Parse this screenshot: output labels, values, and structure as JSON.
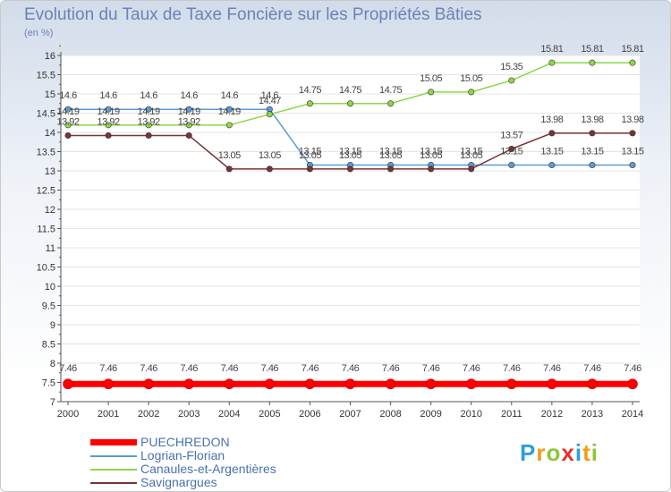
{
  "chart_data": {
    "type": "line",
    "title": "Evolution du Taux de Taxe Foncière sur les Propriétés Bâties",
    "ylabel": "(en %)",
    "xlabel": "",
    "categories": [
      "2000",
      "2001",
      "2002",
      "2003",
      "2004",
      "2005",
      "2006",
      "2007",
      "2008",
      "2009",
      "2010",
      "2011",
      "2012",
      "2013",
      "2014"
    ],
    "ylim": [
      7,
      16
    ],
    "yticks": [
      7,
      7.5,
      8,
      8.5,
      9,
      9.5,
      10,
      10.5,
      11,
      11.5,
      12,
      12.5,
      13,
      13.5,
      14,
      14.5,
      15,
      15.5,
      16
    ],
    "ytick_labels": [
      "7",
      "7.5",
      "8",
      "8.5",
      "9",
      "9.5",
      "10",
      "10.5",
      "11",
      "11.5",
      "12",
      "12.5",
      "13",
      "13.5",
      "14",
      "14.5",
      "15",
      "15.5",
      "16"
    ],
    "series": [
      {
        "name": "PUECHREDON",
        "color": "#ff0000",
        "values": [
          7.46,
          7.46,
          7.46,
          7.46,
          7.46,
          7.46,
          7.46,
          7.46,
          7.46,
          7.46,
          7.46,
          7.46,
          7.46,
          7.46,
          7.46
        ],
        "labels": [
          "7.46",
          "7.46",
          "7.46",
          "7.46",
          "7.46",
          "7.46",
          "7.46",
          "7.46",
          "7.46",
          "7.46",
          "7.46",
          "7.46",
          "7.46",
          "7.46",
          "7.46"
        ]
      },
      {
        "name": "Logrian-Florian",
        "color": "#5b9bd5",
        "values": [
          14.6,
          14.6,
          14.6,
          14.6,
          14.6,
          14.6,
          13.15,
          13.15,
          13.15,
          13.15,
          13.15,
          13.15,
          13.15,
          13.15,
          13.15
        ],
        "labels": [
          "14.6",
          "14.6",
          "14.6",
          "14.6",
          "14.6",
          "14.6",
          "13.15",
          "13.15",
          "13.15",
          "13.15",
          "13.15",
          "13.15",
          "13.15",
          "13.15",
          "13.15"
        ]
      },
      {
        "name": "Canaules-et-Argentières",
        "color": "#8ed64a",
        "values": [
          14.19,
          14.19,
          14.19,
          14.19,
          14.19,
          14.47,
          14.75,
          14.75,
          14.75,
          15.05,
          15.05,
          15.35,
          15.81,
          15.81,
          15.81
        ],
        "labels": [
          "14.19",
          "14.19",
          "14.19",
          "14.19",
          "14.19",
          "14.47",
          "14.75",
          "14.75",
          "14.75",
          "15.05",
          "15.05",
          "15.35",
          "15.81",
          "15.81",
          "15.81"
        ]
      },
      {
        "name": "Savignargues",
        "color": "#7a3434",
        "values": [
          13.92,
          13.92,
          13.92,
          13.92,
          13.05,
          13.05,
          13.05,
          13.05,
          13.05,
          13.05,
          13.05,
          13.57,
          13.98,
          13.98,
          13.98
        ],
        "labels": [
          "13.92",
          "13.92",
          "13.92",
          "13.92",
          "13.05",
          "13.05",
          "13.05",
          "13.05",
          "13.05",
          "13.05",
          "13.05",
          "13.57",
          "13.98",
          "13.98",
          "13.98"
        ]
      }
    ],
    "legend_position": "bottom-left"
  },
  "legend": [
    {
      "label": "PUECHREDON",
      "color": "#ff0000"
    },
    {
      "label": "Logrian-Florian",
      "color": "#5b9bd5"
    },
    {
      "label": "Canaules-et-Argentières",
      "color": "#8ed64a"
    },
    {
      "label": "Savignargues",
      "color": "#7a3434"
    }
  ],
  "logo": {
    "letters": [
      "P",
      "r",
      "o",
      "x",
      "i",
      "t",
      "i"
    ],
    "colors": [
      "#2f9fd8",
      "#f39c12",
      "#8cc63e",
      "#e6332a",
      "#2f9fd8",
      "#f39c12",
      "#8cc63e"
    ]
  }
}
